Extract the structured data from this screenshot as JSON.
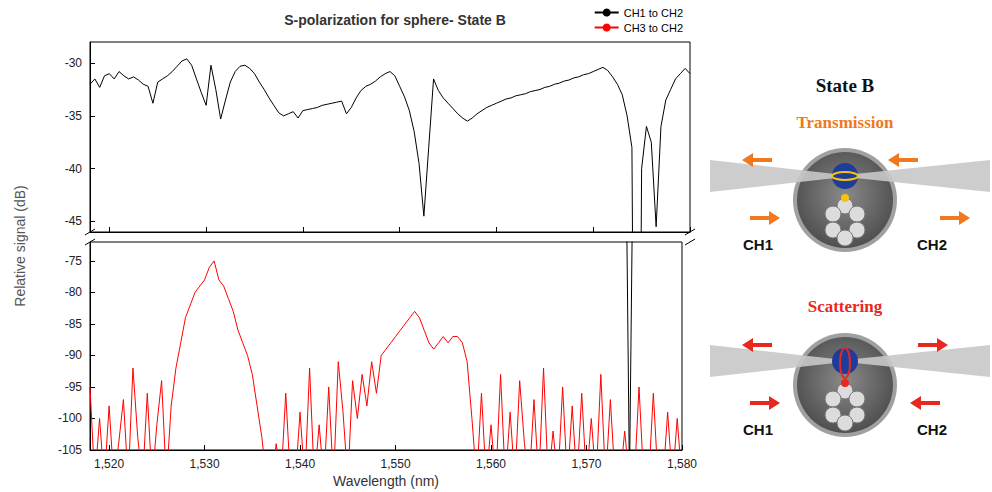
{
  "chart_data": {
    "type": "line",
    "title": "S-polarization for sphere- State B",
    "xlabel": "Wavelength (nm)",
    "ylabel": "Relative signal (dB)",
    "xlim": [
      1518,
      1580
    ],
    "xticks": [
      1520,
      1530,
      1540,
      1550,
      1560,
      1570,
      1580
    ],
    "panels": [
      {
        "ylim": [
          -46,
          -28
        ],
        "yticks": [
          -30,
          -35,
          -40,
          -45
        ]
      },
      {
        "ylim": [
          -105,
          -72
        ],
        "yticks": [
          -75,
          -80,
          -85,
          -90,
          -95,
          -100,
          -105
        ]
      }
    ],
    "grid": false,
    "legend": "upper right",
    "x": [
      1518,
      1518.5,
      1519,
      1519.5,
      1520,
      1520.5,
      1521,
      1521.5,
      1522,
      1522.5,
      1523,
      1523.5,
      1524,
      1524.5,
      1525,
      1525.5,
      1526,
      1526.5,
      1527,
      1527.5,
      1528,
      1528.5,
      1529,
      1529.5,
      1530,
      1530.5,
      1531,
      1531.5,
      1532,
      1532.5,
      1533,
      1533.5,
      1534,
      1534.5,
      1535,
      1535.5,
      1536,
      1536.5,
      1537,
      1537.5,
      1538,
      1538.5,
      1539,
      1539.5,
      1540,
      1540.5,
      1541,
      1541.5,
      1542,
      1542.5,
      1543,
      1543.5,
      1544,
      1544.5,
      1545,
      1545.5,
      1546,
      1546.5,
      1547,
      1547.5,
      1548,
      1548.5,
      1549,
      1549.5,
      1550,
      1550.5,
      1551,
      1551.5,
      1552,
      1552.5,
      1553,
      1553.5,
      1554,
      1554.5,
      1555,
      1555.5,
      1556,
      1556.5,
      1557,
      1557.5,
      1558,
      1558.5,
      1559,
      1559.5,
      1560,
      1560.5,
      1561,
      1561.5,
      1562,
      1562.5,
      1563,
      1563.5,
      1564,
      1564.5,
      1565,
      1565.5,
      1566,
      1566.5,
      1567,
      1567.5,
      1568,
      1568.5,
      1569,
      1569.5,
      1570,
      1570.5,
      1571,
      1571.5,
      1572,
      1572.5,
      1573,
      1573.5,
      1574,
      1574.5,
      1575,
      1575.5,
      1576,
      1576.5,
      1577,
      1577.5,
      1578,
      1578.5,
      1579,
      1579.5,
      1580
    ],
    "series": [
      {
        "name": "CH1 to CH2",
        "color": "#000000",
        "values": [
          -32,
          -31.5,
          -32.3,
          -31.2,
          -31,
          -31.5,
          -30.8,
          -31.2,
          -31.5,
          -31.3,
          -31.6,
          -32,
          -32.2,
          -33.8,
          -31.8,
          -31.5,
          -31.2,
          -30.8,
          -30.3,
          -29.8,
          -29.6,
          -30.2,
          -31.5,
          -32.8,
          -34,
          -30.2,
          -32.5,
          -35.3,
          -33.5,
          -31.8,
          -30.8,
          -30.3,
          -30.2,
          -30.5,
          -31,
          -31.8,
          -32.5,
          -33.3,
          -34,
          -34.7,
          -35,
          -34.8,
          -34.6,
          -35.2,
          -34.5,
          -34.4,
          -34.3,
          -34.2,
          -34,
          -33.9,
          -33.8,
          -33.7,
          -33.6,
          -34.8,
          -34.2,
          -33.3,
          -32.6,
          -32.2,
          -32,
          -31.7,
          -31.3,
          -31,
          -30.8,
          -31.2,
          -32.2,
          -33.2,
          -34.5,
          -36.5,
          -39.5,
          -44.5,
          -38,
          -31.5,
          -32.6,
          -33.3,
          -33.8,
          -34.3,
          -34.8,
          -35.2,
          -35.5,
          -35.2,
          -34.8,
          -34.5,
          -34.2,
          -34,
          -33.8,
          -33.6,
          -33.4,
          -33.3,
          -33.1,
          -33,
          -32.9,
          -32.7,
          -32.6,
          -32.5,
          -32.3,
          -32.2,
          -32,
          -31.9,
          -31.7,
          -31.6,
          -31.4,
          -31.3,
          -31.1,
          -31,
          -30.8,
          -30.6,
          -30.4,
          -30.7,
          -31.3,
          -32,
          -33,
          -35,
          -38,
          -110,
          -40,
          -36,
          -37.5,
          -45.5,
          -36,
          -33.5,
          -32.5,
          -31.5,
          -31,
          -30.5,
          -31
        ]
      },
      {
        "name": "CH3 to CH2",
        "color": "#ff0000",
        "values": [
          -95,
          -110,
          -100,
          -110,
          -98,
          -110,
          -104,
          -97,
          -110,
          -92,
          -103,
          -110,
          -96,
          -110,
          -101,
          -94,
          -110,
          -98,
          -92,
          -88,
          -84,
          -82,
          -80,
          -79,
          -78,
          -76,
          -75,
          -78,
          -79,
          -81,
          -83,
          -86,
          -88,
          -90,
          -93,
          -98,
          -103,
          -110,
          -110,
          -104,
          -110,
          -96,
          -110,
          -110,
          -99,
          -110,
          -92,
          -110,
          -101,
          -110,
          -95,
          -110,
          -91,
          -99,
          -110,
          -94,
          -100,
          -93,
          -98,
          -91,
          -96,
          -90,
          -89,
          -88,
          -87,
          -86,
          -85,
          -84,
          -83,
          -84,
          -86,
          -88,
          -89,
          -88,
          -87,
          -88,
          -87,
          -87,
          -88,
          -91,
          -100,
          -110,
          -96,
          -110,
          -101,
          -110,
          -93,
          -110,
          -99,
          -110,
          -94,
          -104,
          -110,
          -97,
          -110,
          -92,
          -110,
          -102,
          -110,
          -95,
          -110,
          -98,
          -110,
          -96,
          -110,
          -100,
          -110,
          -93,
          -110,
          -97,
          -110,
          -110,
          -102,
          -110,
          -110,
          -95,
          -110,
          -110,
          -96,
          -110,
          -110,
          -99,
          -110,
          -100,
          -110
        ]
      }
    ]
  },
  "diagram": {
    "title": "State B",
    "panels": [
      {
        "label": "Transmission",
        "color": "#f07820",
        "channels": [
          "CH1",
          "CH2"
        ]
      },
      {
        "label": "Scattering",
        "color": "#e8281e",
        "channels": [
          "CH1",
          "CH2"
        ]
      }
    ]
  }
}
